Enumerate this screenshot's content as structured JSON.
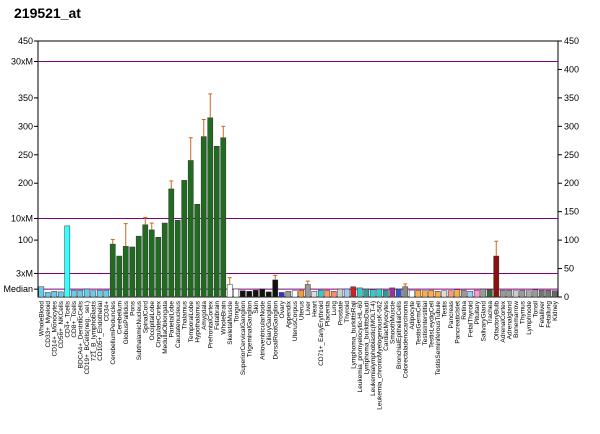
{
  "chart_data": {
    "type": "bar",
    "title": "219521_at",
    "categories": [
      "WholeBlood",
      "CD33+_Myeloid",
      "CD14+_Monocytes",
      "CD56+_NKCells",
      "CD4+_Tcells",
      "CD8+_Tcells",
      "BDCA4+_DentriticCells",
      "CD19+_BCells(neg._sel.)",
      "721_B_lymphoblasts",
      "CD105+_Endothelial",
      "CD34+",
      "CerebellumPeduncles",
      "Cerebellum",
      "GlobusPallidus",
      "Pons",
      "SubthalamicNucleus",
      "SpinalCord",
      "OccipitalLobe",
      "CingulateCortex",
      "MedullaOblongata",
      "ParietalLobe",
      "Caudatenucleus",
      "Thalamus",
      "TemporalLobe",
      "Hypothalamus",
      "Amygdala",
      "PrefrontalCortex",
      "Fetalbrain",
      "WholeBrain",
      "SkeletalMuscle",
      "Tongue",
      "SuperiorCervicalGanglion",
      "TrigeminalGanglion",
      "Skin",
      "AtrioventricularNode",
      "CiliaryGanglion",
      "DorsalRootGanglion",
      "Ovary",
      "Appendix",
      "UterusCorpus",
      "Uterus",
      "Liver",
      "Heart",
      "CD71+_EarlyErythroid",
      "Placenta",
      "Lung",
      "Prostate",
      "Thyroid",
      "Lymphoma_burkittsRaji",
      "Leukemia_promyelocytic-HL-60",
      "Lymphoma_burkittsDaudi",
      "Leukemialymphoblastic(MOLT-4)",
      "Leukemia_chronicMyelogenousK-562",
      "CardiacMyocytes",
      "SmoothMuscle",
      "BronchialEpithelialCells",
      "Colorectaladenocarcinoma",
      "Adipocyte",
      "TestisGermCell",
      "TestisInterstitial",
      "TestisLeydigCell",
      "TestisSeminiferousTubule",
      "Testis",
      "Pancreas",
      "PancreaticIslet",
      "Retina",
      "FetalThyroid",
      "Pituitary",
      "SalivaryGland",
      "Trachea",
      "OlfactoryBulb",
      "AdrenalCortex",
      "Adrenalgland",
      "Bonemarrow",
      "Thymus",
      "Lymphnode",
      "Tonsil",
      "Fetalliver",
      "Fetallung",
      "Kidney"
    ],
    "values": [
      18,
      8,
      10,
      9,
      125,
      12,
      12,
      14,
      11,
      12,
      12,
      93,
      72,
      89,
      88,
      107,
      127,
      118,
      105,
      130,
      190,
      135,
      205,
      240,
      163,
      282,
      315,
      265,
      280,
      22,
      14,
      11,
      10,
      12,
      14,
      9,
      30,
      8,
      10,
      11,
      12,
      22,
      10,
      12,
      12,
      10,
      14,
      14,
      18,
      16,
      14,
      13,
      14,
      12,
      16,
      14,
      18,
      12,
      12,
      11,
      12,
      10,
      11,
      11,
      13,
      12,
      10,
      12,
      14,
      13,
      72,
      12,
      12,
      11,
      12,
      11,
      13,
      12,
      12,
      11
    ],
    "errors": [
      null,
      null,
      null,
      null,
      null,
      null,
      null,
      null,
      null,
      null,
      null,
      8,
      null,
      40,
      null,
      null,
      13,
      12,
      null,
      null,
      14,
      null,
      null,
      40,
      null,
      30,
      42,
      null,
      20,
      12,
      null,
      null,
      null,
      null,
      null,
      null,
      8,
      null,
      null,
      null,
      null,
      6,
      null,
      null,
      null,
      null,
      null,
      null,
      null,
      null,
      null,
      null,
      null,
      null,
      null,
      null,
      5,
      null,
      null,
      null,
      null,
      null,
      null,
      null,
      null,
      null,
      null,
      null,
      null,
      null,
      26,
      null,
      null,
      null,
      null,
      null,
      null,
      null,
      null,
      null
    ],
    "colors": [
      "#66ccee",
      "#66ccee",
      "#66ccee",
      "#66ccee",
      "#33ffff",
      "#66ccee",
      "#66ccee",
      "#66ccee",
      "#66ccee",
      "#66ccee",
      "#66ccee",
      "#1f6b1f",
      "#1f6b1f",
      "#1f6b1f",
      "#1f6b1f",
      "#1f6b1f",
      "#1f6b1f",
      "#1f6b1f",
      "#1f6b1f",
      "#1f6b1f",
      "#1f6b1f",
      "#1f6b1f",
      "#1f6b1f",
      "#1f6b1f",
      "#1f6b1f",
      "#1f6b1f",
      "#1f6b1f",
      "#1f6b1f",
      "#1f6b1f",
      "#ffffff",
      "#ffffff",
      "#111111",
      "#111111",
      "#111111",
      "#111111",
      "#111111",
      "#111111",
      "#3333cc",
      "#999999",
      "#ffffff",
      "#ff9933",
      "#999999",
      "#dddddd",
      "#33cccc",
      "#ff9966",
      "#ff8866",
      "#cccccc",
      "#99ccff",
      "#cc2222",
      "#33cccc",
      "#339999",
      "#33cccc",
      "#33cccc",
      "#339999",
      "#993399",
      "#3355cc",
      "#888888",
      "#ffffff",
      "#ffaa44",
      "#ffaa44",
      "#ffaa44",
      "#ffaa44",
      "#dddddd",
      "#ff9977",
      "#ffaa44",
      "#999999",
      "#99ccff",
      "#ff99cc",
      "#999999",
      "#336633",
      "#8b1010",
      "#999999",
      "#999999",
      "#cccccc",
      "#999999",
      "#aaaaaa",
      "#999999",
      "#777777",
      "#777777",
      "#666666"
    ],
    "ylim": [
      0,
      450
    ],
    "yticks": [
      0,
      50,
      100,
      150,
      200,
      250,
      300,
      350,
      400,
      450
    ],
    "left_ticks": [
      450,
      {
        "value": 414,
        "label": "30xM"
      },
      350,
      300,
      250,
      200,
      {
        "value": 138,
        "label": "10xM"
      },
      100,
      {
        "value": 41.4,
        "label": "3xM"
      },
      {
        "value": 13.8,
        "label": "Median"
      }
    ],
    "reference_line_color": "#800080"
  }
}
